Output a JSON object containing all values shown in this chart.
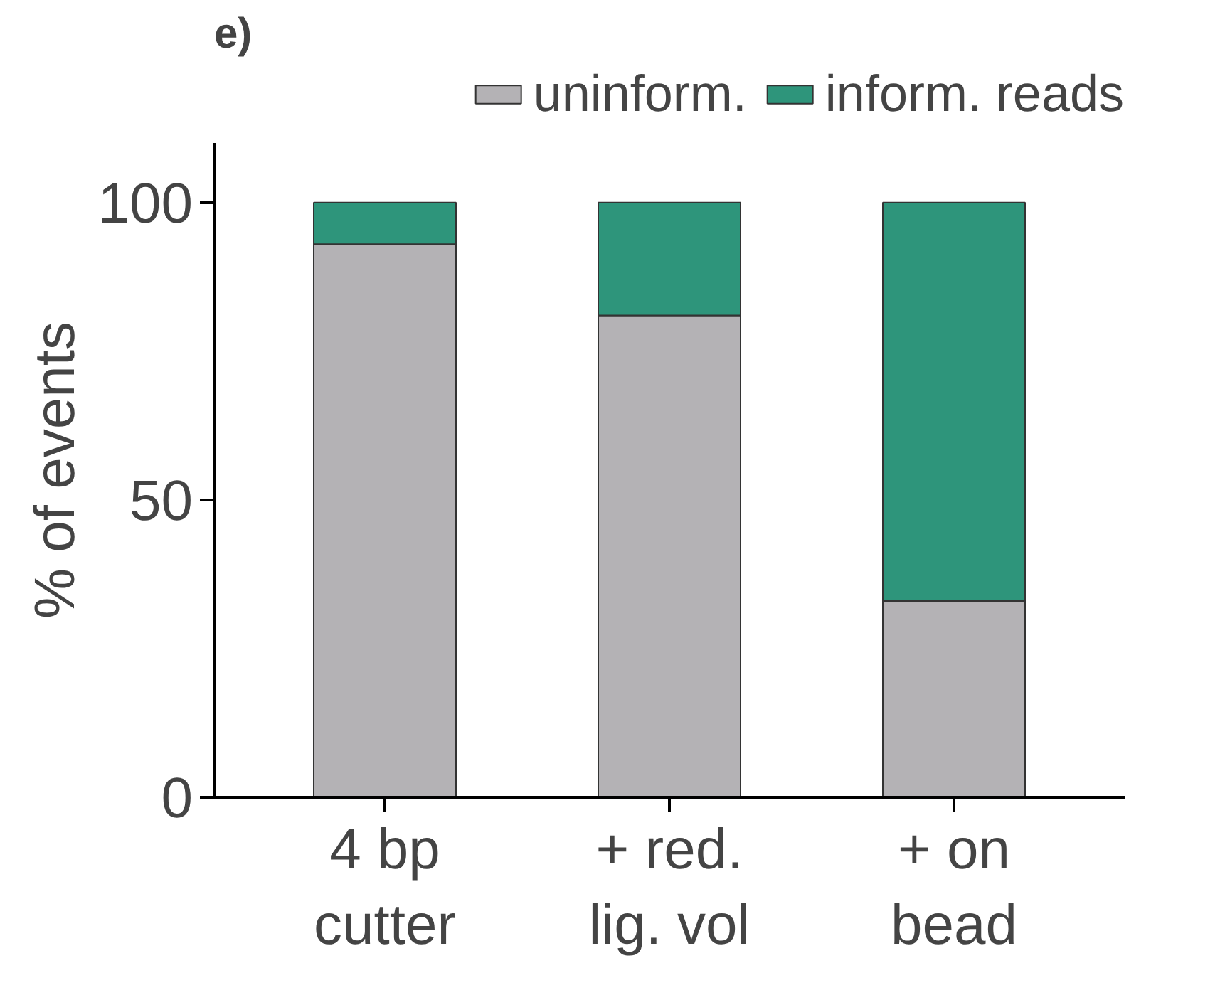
{
  "chart_data": {
    "type": "bar",
    "title": "e)",
    "stacked": true,
    "ylabel": "% of events",
    "categories": [
      "4 bp\ncutter",
      "+ red.\nlig. vol",
      "+ on\nbead"
    ],
    "series": [
      {
        "name": "uninform.",
        "color": "#b4b2b5",
        "values": [
          93,
          81,
          33
        ]
      },
      {
        "name": "inform. reads",
        "color": "#2e957b",
        "values": [
          7,
          19,
          67
        ]
      }
    ],
    "ylim": [
      0,
      110
    ],
    "yticks": [
      0,
      50,
      100
    ],
    "grid": false,
    "legend": "top"
  }
}
